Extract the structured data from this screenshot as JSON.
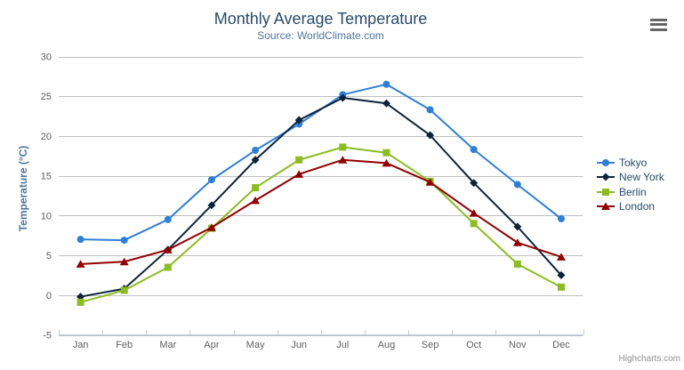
{
  "chart_data": {
    "type": "line",
    "title": "Monthly Average Temperature",
    "subtitle": "Source: WorldClimate.com",
    "categories": [
      "Jan",
      "Feb",
      "Mar",
      "Apr",
      "May",
      "Jun",
      "Jul",
      "Aug",
      "Sep",
      "Oct",
      "Nov",
      "Dec"
    ],
    "xlabel": "",
    "ylabel": "Temperature (°C)",
    "ylim": [
      -5,
      30
    ],
    "yticks": [
      -5,
      0,
      5,
      10,
      15,
      20,
      25,
      30
    ],
    "grid": true,
    "legend_position": "right",
    "series": [
      {
        "name": "Tokyo",
        "color": "#2f7ed8",
        "marker": "circle",
        "values": [
          7.0,
          6.9,
          9.5,
          14.5,
          18.2,
          21.5,
          25.2,
          26.5,
          23.3,
          18.3,
          13.9,
          9.6
        ]
      },
      {
        "name": "New York",
        "color": "#0d233a",
        "marker": "diamond",
        "values": [
          -0.2,
          0.8,
          5.7,
          11.3,
          17.0,
          22.0,
          24.8,
          24.1,
          20.1,
          14.1,
          8.6,
          2.5
        ]
      },
      {
        "name": "Berlin",
        "color": "#8bbc21",
        "marker": "square",
        "values": [
          -0.9,
          0.6,
          3.5,
          8.4,
          13.5,
          17.0,
          18.6,
          17.9,
          14.3,
          9.0,
          3.9,
          1.0
        ]
      },
      {
        "name": "London",
        "color": "#910000",
        "marker": "triangle",
        "values": [
          3.9,
          4.2,
          5.7,
          8.5,
          11.9,
          15.2,
          17.0,
          16.6,
          14.2,
          10.3,
          6.6,
          4.8
        ]
      }
    ]
  },
  "export_menu": {
    "icon": "hamburger"
  },
  "credits": {
    "label": "Highcharts.com"
  },
  "colors": {
    "title": "#274b6d",
    "subtitle": "#4d759e",
    "axis_title": "#4d759e",
    "axis_labels": "#606060",
    "grid_line": "#c0c0c0",
    "axis_line": "#c0d0e0",
    "legend_text": "#274b6d",
    "credits_text": "#909090",
    "menu_icon": "#666666",
    "background": "#ffffff"
  }
}
